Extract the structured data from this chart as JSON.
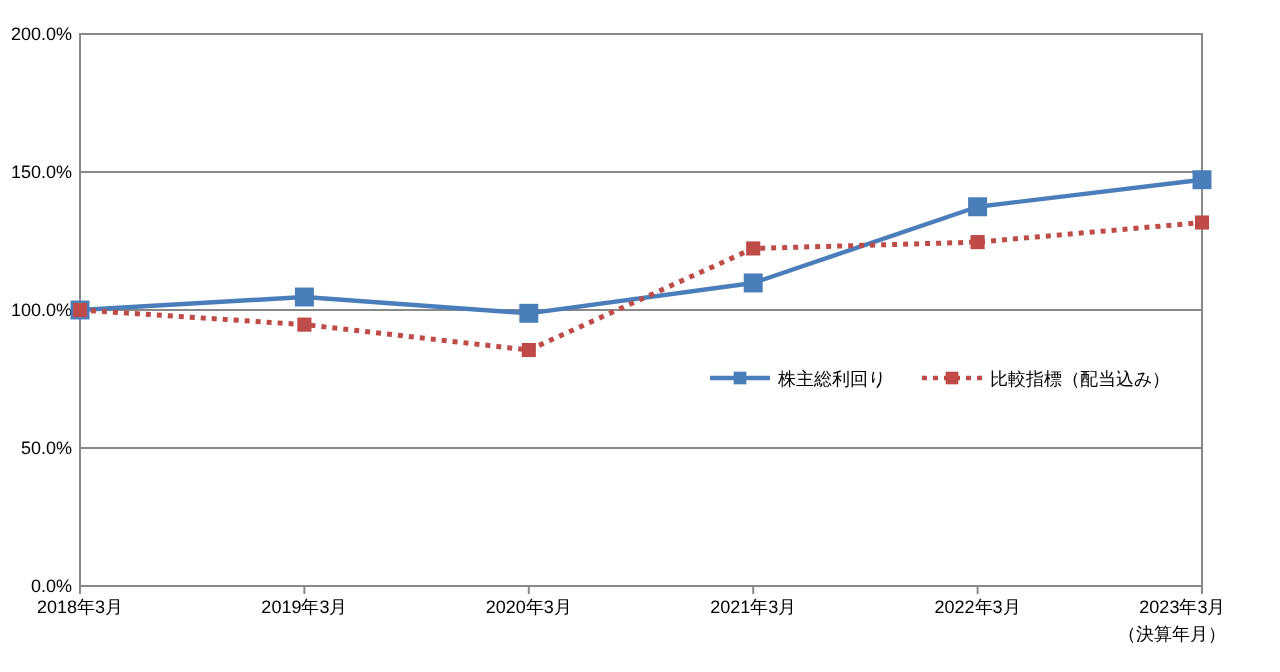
{
  "chart_data": {
    "type": "line",
    "categories": [
      "2018年3月",
      "2019年3月",
      "2020年3月",
      "2021年3月",
      "2022年3月",
      "2023年3月"
    ],
    "xlabel": "（決算年月）",
    "series": [
      {
        "name": "株主総利回り",
        "color": "#4a7ebb",
        "line_style": "solid",
        "values": [
          100,
          104.7,
          98.8,
          109.8,
          137.4,
          147.2
        ]
      },
      {
        "name": "比較指標（配当込み）",
        "color": "#be4b48",
        "line_style": "dotted",
        "values": [
          100,
          94.7,
          85.5,
          122.3,
          124.6,
          131.7
        ]
      }
    ],
    "ylim": [
      0,
      200
    ],
    "yticks": [
      {
        "value": 0,
        "label": "0.0%"
      },
      {
        "value": 50,
        "label": "50.0%"
      },
      {
        "value": 100,
        "label": "100.0%"
      },
      {
        "value": 150,
        "label": "150.0%"
      },
      {
        "value": 200,
        "label": "200.0%"
      }
    ],
    "grid": "y",
    "legend": "right",
    "marker": "square"
  }
}
